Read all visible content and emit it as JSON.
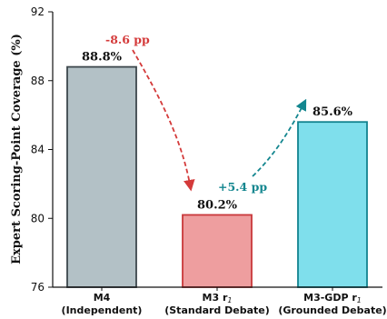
{
  "chart_data": {
    "type": "bar",
    "ylabel": "Expert Scoring-Point Coverage (%)",
    "ylim": [
      76,
      92
    ],
    "yticks": [
      "76",
      "80",
      "84",
      "88",
      "92"
    ],
    "categories": [
      {
        "line1": "M4",
        "line1_sub": "",
        "line2": "(Independent)"
      },
      {
        "line1": "M3 r",
        "line1_sub": "1",
        "line2": "(Standard Debate)"
      },
      {
        "line1": "M3-GDP r",
        "line1_sub": "1",
        "line2": "(Grounded Debate)"
      }
    ],
    "values": [
      88.8,
      80.2,
      85.6
    ],
    "value_labels": [
      "88.8%",
      "80.2%",
      "85.6%"
    ],
    "bar_fill_colors": [
      "#b3c1c6",
      "#ee9e9f",
      "#7fdfec"
    ],
    "bar_edge_colors": [
      "#3c474c",
      "#c9383a",
      "#12838f"
    ],
    "annotations": [
      {
        "text": "-8.6 pp",
        "color": "#d43a3a"
      },
      {
        "text": "+5.4 pp",
        "color": "#13868f"
      }
    ],
    "grid": false,
    "legend": "none"
  }
}
